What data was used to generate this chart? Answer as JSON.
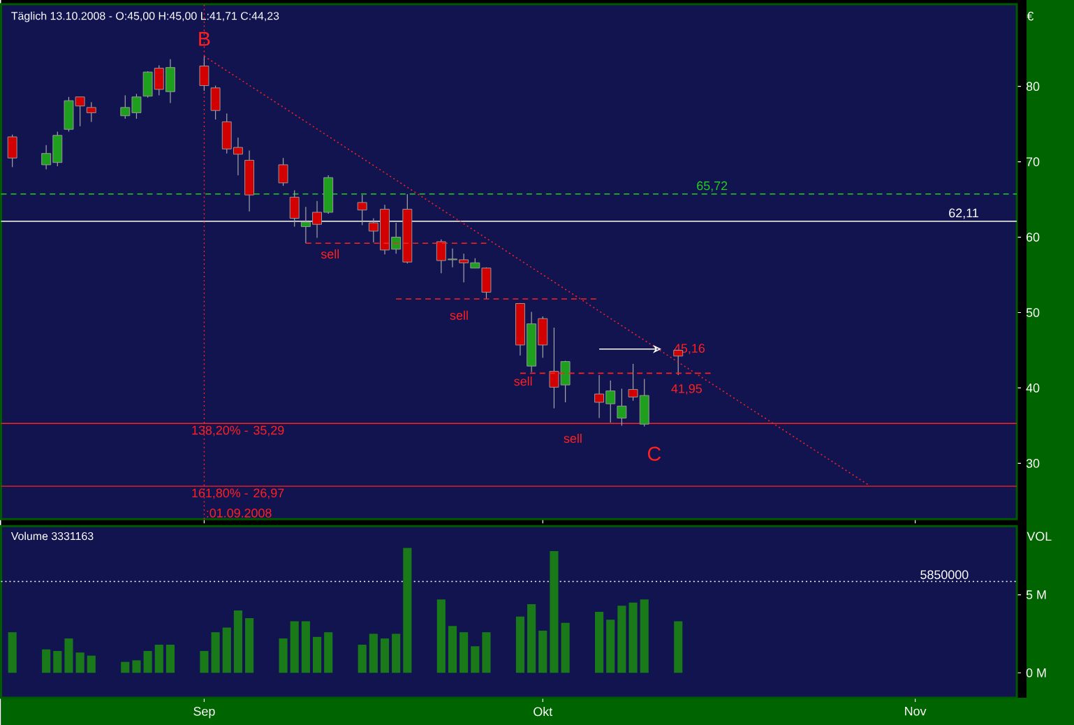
{
  "chart_data": [
    {
      "type": "candlestick",
      "title": "Täglich 13.10.2008 - O:45,00 H:45,00 L:41,71 C:44,23",
      "ylabel": "€",
      "x": [
        "2008-08-15",
        "2008-08-18",
        "2008-08-19",
        "2008-08-20",
        "2008-08-21",
        "2008-08-22",
        "2008-08-25",
        "2008-08-26",
        "2008-08-27",
        "2008-08-28",
        "2008-08-29",
        "2008-09-01",
        "2008-09-02",
        "2008-09-03",
        "2008-09-04",
        "2008-09-05",
        "2008-09-08",
        "2008-09-09",
        "2008-09-10",
        "2008-09-11",
        "2008-09-12",
        "2008-09-15",
        "2008-09-16",
        "2008-09-17",
        "2008-09-18",
        "2008-09-19",
        "2008-09-22",
        "2008-09-23",
        "2008-09-24",
        "2008-09-25",
        "2008-09-26",
        "2008-09-29",
        "2008-09-30",
        "2008-10-01",
        "2008-10-02",
        "2008-10-03",
        "2008-10-06",
        "2008-10-07",
        "2008-10-08",
        "2008-10-09",
        "2008-10-10",
        "2008-10-13"
      ],
      "ohlc": [
        [
          73.3,
          73.6,
          69.3,
          70.5
        ],
        [
          69.6,
          72.2,
          69.0,
          71.1
        ],
        [
          69.9,
          74.0,
          69.4,
          73.5
        ],
        [
          74.3,
          78.6,
          74.0,
          78.1
        ],
        [
          78.6,
          78.6,
          74.7,
          77.4
        ],
        [
          77.2,
          77.9,
          75.3,
          76.5
        ],
        [
          76.1,
          78.8,
          75.7,
          77.2
        ],
        [
          76.5,
          79.0,
          75.7,
          78.6
        ],
        [
          78.7,
          82.0,
          78.5,
          81.9
        ],
        [
          82.4,
          82.8,
          78.8,
          79.6
        ],
        [
          79.3,
          83.6,
          77.8,
          82.5
        ],
        [
          82.7,
          84.0,
          79.4,
          80.1
        ],
        [
          79.8,
          80.1,
          75.6,
          76.8
        ],
        [
          75.3,
          76.4,
          71.1,
          71.7
        ],
        [
          71.9,
          73.2,
          68.2,
          71.0
        ],
        [
          70.2,
          71.5,
          63.4,
          65.6
        ],
        [
          69.6,
          70.5,
          66.8,
          67.2
        ],
        [
          65.3,
          66.2,
          61.4,
          62.5
        ],
        [
          61.4,
          64.0,
          59.2,
          62.0
        ],
        [
          63.3,
          64.8,
          59.9,
          61.7
        ],
        [
          63.3,
          68.2,
          63.1,
          67.9
        ],
        [
          64.6,
          65.6,
          61.6,
          63.6
        ],
        [
          61.9,
          62.5,
          59.3,
          60.8
        ],
        [
          63.7,
          64.3,
          57.7,
          58.3
        ],
        [
          58.4,
          61.9,
          57.8,
          60.0
        ],
        [
          63.7,
          65.7,
          56.5,
          56.7
        ],
        [
          59.4,
          59.7,
          55.2,
          56.9
        ],
        [
          57.0,
          58.5,
          56.0,
          57.1
        ],
        [
          57.0,
          57.8,
          54.0,
          56.6
        ],
        [
          55.9,
          57.2,
          55.9,
          56.6
        ],
        [
          55.9,
          56.0,
          51.8,
          52.7
        ],
        [
          51.2,
          51.2,
          44.3,
          45.7
        ],
        [
          42.9,
          50.1,
          42.1,
          48.5
        ],
        [
          49.2,
          49.5,
          44.0,
          45.7
        ],
        [
          42.2,
          48.0,
          37.3,
          40.1
        ],
        [
          40.4,
          43.6,
          38.1,
          43.5
        ],
        [
          39.2,
          41.7,
          36.0,
          38.1
        ],
        [
          37.9,
          41.0,
          35.4,
          39.6
        ],
        [
          36.0,
          39.9,
          35.0,
          37.6
        ],
        [
          39.8,
          43.2,
          38.3,
          38.8
        ],
        [
          35.2,
          41.2,
          34.9,
          39.0
        ],
        [
          45.0,
          45.0,
          41.71,
          44.23
        ]
      ],
      "series": [
        {
          "type": "line",
          "x": [
            "2008-09-01",
            "2008-10-30"
          ],
          "values": [
            84.0,
            27.0
          ],
          "color": "#ff2020",
          "line_style": "dotted"
        },
        {
          "type": "line",
          "x": [
            "2008-09-10",
            "2008-09-26"
          ],
          "values": [
            59.2,
            59.2
          ],
          "color": "#ff2020",
          "line_style": "dashed"
        },
        {
          "type": "line",
          "x": [
            "2008-09-18",
            "2008-10-06"
          ],
          "values": [
            51.8,
            51.8
          ],
          "color": "#ff2020",
          "line_style": "dashed"
        },
        {
          "type": "line",
          "x": [
            "2008-09-29",
            "2008-10-16"
          ],
          "values": [
            41.95,
            41.95
          ],
          "color": "#ff2020",
          "line_style": "dashed"
        }
      ],
      "ref_lines": [
        {
          "axis": "y",
          "value": 65.72,
          "label": "65,72",
          "color": "#22cc22",
          "line_style": "dashed"
        },
        {
          "axis": "y",
          "value": 62.11,
          "label": "62,11",
          "color": "#ffffff",
          "line_style": "solid"
        },
        {
          "axis": "y",
          "value": 35.29,
          "label": "35,29",
          "color": "#ff2020",
          "line_style": "solid"
        },
        {
          "axis": "y",
          "value": 26.97,
          "label": "26,97",
          "color": "#ff2020",
          "line_style": "solid"
        },
        {
          "axis": "x",
          "value": "2008-09-01",
          "label": ":01.09.2008",
          "color": "#ff2020",
          "line_style": "dotted"
        }
      ],
      "annotations": [
        {
          "text": "B",
          "x": "2008-09-01",
          "y": 86.3
        },
        "C",
        "sell",
        "sell",
        "sell",
        "sell",
        {
          "text": "45,16",
          "x": "2008-10-14",
          "y": 45.16
        },
        "41,95",
        "138,20% -",
        "161,80% -"
      ],
      "xlim": [
        "2008-08-14",
        "2008-11-12"
      ],
      "xticks": [
        {
          "value": "2008-09-01",
          "label": null
        },
        {
          "value": "2008-10-01",
          "label": null
        },
        {
          "value": "2008-11-03",
          "label": null
        }
      ],
      "ylim": [
        22.6,
        90.9
      ],
      "yticks": [
        30,
        40,
        50,
        60,
        70,
        80
      ],
      "tick_labels": "y"
    },
    {
      "type": "bar",
      "title": "Volume 3331163",
      "ylabel": "VOL",
      "color": "#1a7a1a",
      "x": [
        "2008-08-15",
        "2008-08-18",
        "2008-08-19",
        "2008-08-20",
        "2008-08-21",
        "2008-08-22",
        "2008-08-25",
        "2008-08-26",
        "2008-08-27",
        "2008-08-28",
        "2008-08-29",
        "2008-09-01",
        "2008-09-02",
        "2008-09-03",
        "2008-09-04",
        "2008-09-05",
        "2008-09-08",
        "2008-09-09",
        "2008-09-10",
        "2008-09-11",
        "2008-09-12",
        "2008-09-15",
        "2008-09-16",
        "2008-09-17",
        "2008-09-18",
        "2008-09-19",
        "2008-09-22",
        "2008-09-23",
        "2008-09-24",
        "2008-09-25",
        "2008-09-26",
        "2008-09-29",
        "2008-09-30",
        "2008-10-01",
        "2008-10-02",
        "2008-10-03",
        "2008-10-06",
        "2008-10-07",
        "2008-10-08",
        "2008-10-09",
        "2008-10-10",
        "2008-10-13"
      ],
      "values": [
        2.6,
        1.5,
        1.4,
        2.2,
        1.3,
        1.1,
        0.7,
        0.8,
        1.4,
        1.8,
        1.8,
        1.4,
        2.6,
        2.9,
        4.0,
        3.5,
        2.2,
        3.3,
        3.3,
        2.3,
        2.6,
        1.8,
        2.5,
        2.2,
        2.5,
        8.0,
        4.7,
        3.0,
        2.6,
        1.7,
        2.6,
        3.6,
        4.4,
        2.7,
        7.8,
        3.2,
        3.9,
        3.4,
        4.3,
        4.5,
        4.7,
        3.3
      ],
      "ref_lines": [
        {
          "axis": "y",
          "value": 5.85,
          "label": "5850000",
          "color": "#ffffff",
          "line_style": "dotted"
        }
      ],
      "xlim": [
        "2008-08-14",
        "2008-11-12"
      ],
      "xticks": [
        {
          "value": "2008-09-01",
          "label": "Sep"
        },
        {
          "value": "2008-10-01",
          "label": "Okt"
        },
        {
          "value": "2008-11-03",
          "label": "Nov"
        }
      ],
      "ylim": [
        -1.6,
        9.4
      ],
      "yticks": [
        {
          "value": 0,
          "label": "0 M"
        },
        {
          "value": 5,
          "label": "5 M"
        }
      ]
    }
  ]
}
